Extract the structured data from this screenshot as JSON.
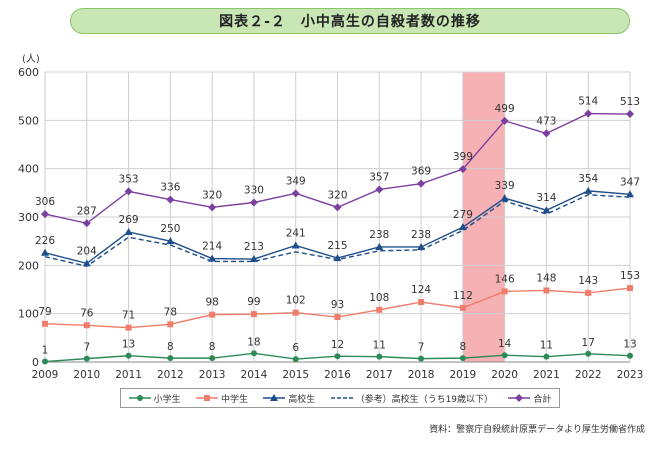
{
  "title": "図表２-２　小中高生の自殺者数の推移",
  "source": "資料：警察庁自殺統計原票データより厚生労働省作成",
  "chart_data": {
    "type": "line",
    "ylabel": "(人)",
    "ylim": [
      0,
      600
    ],
    "yticks": [
      0,
      100,
      200,
      300,
      400,
      500,
      600
    ],
    "x": [
      "2009",
      "2010",
      "2011",
      "2012",
      "2013",
      "2014",
      "2015",
      "2016",
      "2017",
      "2018",
      "2019",
      "2020",
      "2021",
      "2022",
      "2023"
    ],
    "highlight_range": [
      "2019",
      "2020"
    ],
    "grid": true,
    "legend_position": "bottom",
    "series": [
      {
        "name": "小学生",
        "color": "#2e8b57",
        "marker": "circle",
        "dashed": false,
        "values": [
          1,
          7,
          13,
          8,
          8,
          18,
          6,
          12,
          11,
          7,
          8,
          14,
          11,
          17,
          13
        ]
      },
      {
        "name": "中学生",
        "color": "#f07d6b",
        "marker": "square",
        "dashed": false,
        "values": [
          79,
          76,
          71,
          78,
          98,
          99,
          102,
          93,
          108,
          124,
          112,
          146,
          148,
          143,
          153
        ]
      },
      {
        "name": "高校生",
        "color": "#1f4e8c",
        "marker": "triangle",
        "dashed": false,
        "values": [
          226,
          204,
          269,
          250,
          214,
          213,
          241,
          215,
          238,
          238,
          279,
          339,
          314,
          354,
          347
        ]
      },
      {
        "name": "（参考）高校生（うち19歳以下）",
        "color": "#1f4e8c",
        "marker": "none",
        "dashed": true,
        "labels": false,
        "values": [
          218,
          198,
          258,
          242,
          208,
          208,
          228,
          212,
          230,
          232,
          272,
          333,
          306,
          346,
          341
        ]
      },
      {
        "name": "合計",
        "color": "#7b3fa0",
        "marker": "diamond",
        "dashed": false,
        "values": [
          306,
          287,
          353,
          336,
          320,
          330,
          349,
          320,
          357,
          369,
          399,
          499,
          473,
          514,
          513
        ]
      }
    ]
  }
}
